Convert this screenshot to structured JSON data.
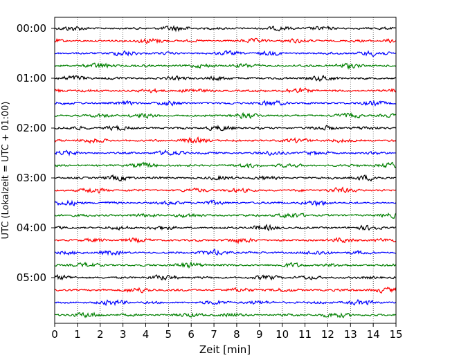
{
  "chart_data": {
    "type": "line",
    "title": "",
    "xlabel": "Zeit  [min]",
    "ylabel": "UTC (Lokalzeit = UTC + 01:00)",
    "xlim": [
      0,
      15
    ],
    "x_ticks": [
      "0",
      "1",
      "2",
      "3",
      "4",
      "5",
      "6",
      "7",
      "8",
      "9",
      "10",
      "11",
      "12",
      "13",
      "14",
      "15"
    ],
    "y_ticks": [
      "00:00",
      "01:00",
      "02:00",
      "03:00",
      "04:00",
      "05:00"
    ],
    "y_tick_hours": [
      0,
      1,
      2,
      3,
      4,
      5
    ],
    "grid": "vertical dotted",
    "trace_interval_min": 15,
    "trace_count": 24,
    "trace_colors": [
      "#000000",
      "#ff0000",
      "#0000ff",
      "#008000"
    ]
  }
}
